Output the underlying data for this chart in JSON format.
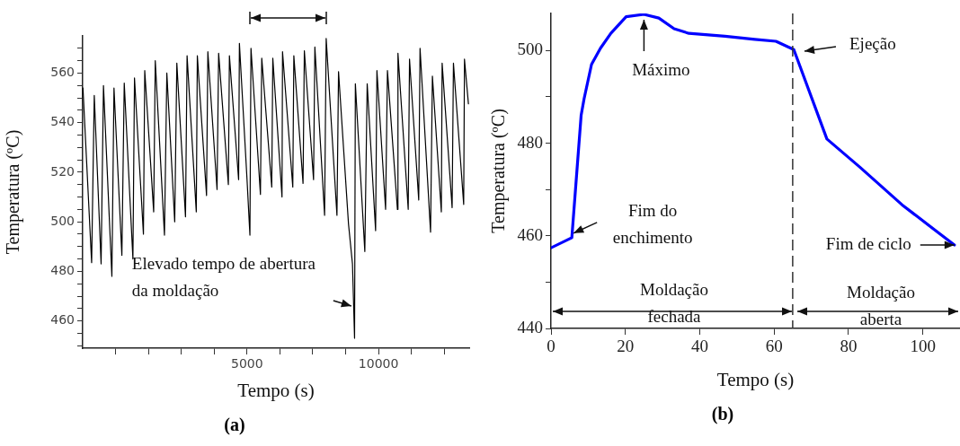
{
  "chart_data": [
    {
      "type": "line",
      "title": "(a)",
      "xlabel": "Tempo (s)",
      "ylabel": "Temperatura (ºC)",
      "color": "#000000",
      "marker": "none",
      "grid": false,
      "legend": false,
      "x": [
        -1240,
        -910,
        -810,
        -550,
        -460,
        -140,
        -60,
        240,
        330,
        660,
        720,
        1060,
        1110,
        1450,
        1510,
        1860,
        1950,
        2250,
        2330,
        2660,
        2720,
        3070,
        3110,
        3460,
        3510,
        3860,
        3920,
        4290,
        4330,
        4680,
        4710,
        5000,
        5110,
        5150,
        5510,
        5560,
        5940,
        5980,
        6330,
        6350,
        6740,
        6780,
        7130,
        7180,
        7530,
        7580,
        7950,
        8010,
        8420,
        8480,
        8860,
        9010,
        9090,
        9120,
        9480,
        9570,
        9890,
        9940,
        10270,
        10340,
        10720,
        10740,
        11130,
        11180,
        11530,
        11580,
        11980,
        12050,
        12390,
        12420,
        12800,
        12850,
        13240,
        13270,
        13420
      ],
      "values": [
        554,
        483.5,
        551,
        483,
        555,
        478,
        554,
        486.5,
        556,
        485,
        558,
        495,
        561,
        504,
        565,
        494.6,
        560,
        500,
        564,
        502,
        567,
        504,
        567,
        510.6,
        568.6,
        513,
        568,
        515,
        567,
        517,
        572,
        517,
        494.6,
        570,
        511,
        566,
        514,
        566,
        510,
        568.6,
        514,
        567,
        515.5,
        569,
        517,
        570.5,
        502.6,
        574,
        502.6,
        560.6,
        499,
        483,
        453,
        555.7,
        488,
        555.7,
        496.4,
        561,
        505,
        561,
        505,
        568,
        505,
        565.6,
        508.8,
        570,
        495.8,
        558.8,
        504,
        564,
        505.7,
        564,
        507,
        565.6,
        547.6
      ],
      "xlim": [
        -1250,
        13450
      ],
      "ylim": [
        449,
        575
      ],
      "xticks": [
        {
          "value": 0,
          "label": null
        },
        {
          "value": 1250,
          "label": null
        },
        {
          "value": 2500,
          "label": null
        },
        {
          "value": 3750,
          "label": null
        },
        5000,
        {
          "value": 6250,
          "label": null
        },
        {
          "value": 7500,
          "label": null
        },
        {
          "value": 8750,
          "label": null
        },
        10000,
        {
          "value": 11250,
          "label": null
        },
        {
          "value": 12500,
          "label": null
        }
      ],
      "yticks": [
        {
          "value": 450,
          "label": null
        },
        {
          "value": 455,
          "label": null
        },
        460,
        {
          "value": 465,
          "label": null
        },
        {
          "value": 470,
          "label": null
        },
        {
          "value": 475,
          "label": null
        },
        480,
        {
          "value": 485,
          "label": null
        },
        {
          "value": 490,
          "label": null
        },
        {
          "value": 495,
          "label": null
        },
        500,
        {
          "value": 505,
          "label": null
        },
        {
          "value": 510,
          "label": null
        },
        {
          "value": 515,
          "label": null
        },
        520,
        {
          "value": 525,
          "label": null
        },
        {
          "value": 530,
          "label": null
        },
        {
          "value": 535,
          "label": null
        },
        540,
        {
          "value": 545,
          "label": null
        },
        {
          "value": 550,
          "label": null
        },
        {
          "value": 555,
          "label": null
        },
        560,
        {
          "value": 565,
          "label": null
        },
        {
          "value": 570,
          "label": null
        }
      ],
      "annotations": [
        {
          "text": "Elevado tempo de abertura da moldação",
          "x": 9000,
          "y": 466
        }
      ]
    },
    {
      "type": "line",
      "title": "(b)",
      "xlabel": "Tempo (s)",
      "ylabel": "Temperatura (ºC)",
      "color": "#0000ff",
      "marker": "none",
      "grid": false,
      "legend": false,
      "x": [
        0,
        5.6,
        8.1,
        8.9,
        10.9,
        13.3,
        16.1,
        20.2,
        25,
        29,
        33.1,
        37.1,
        46.8,
        54.8,
        60.5,
        65.3,
        74.2,
        83.1,
        94.4,
        108.5
      ],
      "values": [
        457.4,
        459.6,
        486,
        489.6,
        497,
        500.5,
        503.7,
        507.3,
        507.8,
        507,
        504.7,
        503.7,
        503.1,
        502.4,
        502,
        500.2,
        480.9,
        474.8,
        466.7,
        458
      ],
      "xlim": [
        0,
        110
      ],
      "ylim": [
        440,
        508
      ],
      "xticks": [
        0,
        20,
        40,
        60,
        80,
        100
      ],
      "yticks": [
        440,
        {
          "value": 450,
          "label": null
        },
        460,
        {
          "value": 470,
          "label": null
        },
        480,
        {
          "value": 490,
          "label": null
        },
        500
      ],
      "ref_lines": [
        {
          "axis": "x",
          "value": 65,
          "line_style": "dashed",
          "color": "#333333"
        }
      ],
      "annotations": [
        {
          "text": "Máximo",
          "x": 25,
          "y": 508
        },
        "Ejeção",
        {
          "text": "Fim do enchimento",
          "x": 5.6,
          "y": 459.6
        },
        {
          "text": "Fim de ciclo",
          "x": 108.5,
          "y": 458
        },
        "Moldação fechada",
        "Moldação aberta"
      ]
    }
  ]
}
